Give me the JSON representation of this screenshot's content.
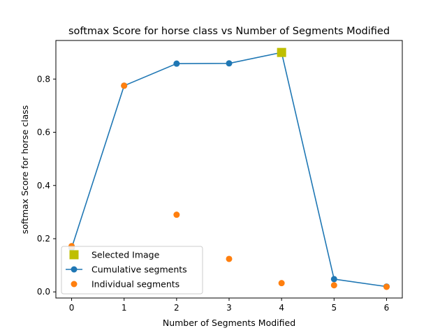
{
  "chart_data": {
    "type": "line",
    "title": "softmax Score for horse class vs Number of Segments Modified",
    "xlabel": "Number of Segments Modified",
    "ylabel": "softmax Score for horse class",
    "xlim": [
      -0.3,
      6.3
    ],
    "ylim": [
      -0.023,
      0.945
    ],
    "xticks": [
      0,
      1,
      2,
      3,
      4,
      5,
      6
    ],
    "yticks": [
      0.0,
      0.2,
      0.4,
      0.6,
      0.8
    ],
    "ytick_labels": [
      "0.0",
      "0.2",
      "0.4",
      "0.6",
      "0.8"
    ],
    "grid": false,
    "legend_position": "lower-left",
    "series": [
      {
        "name": "Cumulative segments",
        "kind": "line-marker",
        "color": "#1f77b4",
        "x": [
          0,
          1,
          2,
          3,
          4,
          5,
          6
        ],
        "y": [
          0.165,
          0.775,
          0.858,
          0.859,
          0.9,
          0.048,
          0.02
        ]
      },
      {
        "name": "Individual segments",
        "kind": "scatter",
        "color": "#ff7f0e",
        "x": [
          0,
          1,
          2,
          3,
          4,
          5,
          6
        ],
        "y": [
          0.172,
          0.775,
          0.29,
          0.124,
          0.033,
          0.025,
          0.019
        ]
      },
      {
        "name": "Selected Image",
        "kind": "square-marker",
        "color": "#bfbf00",
        "x": [
          4
        ],
        "y": [
          0.9
        ]
      }
    ],
    "legend": [
      "Selected Image",
      "Cumulative segments",
      "Individual segments"
    ]
  }
}
